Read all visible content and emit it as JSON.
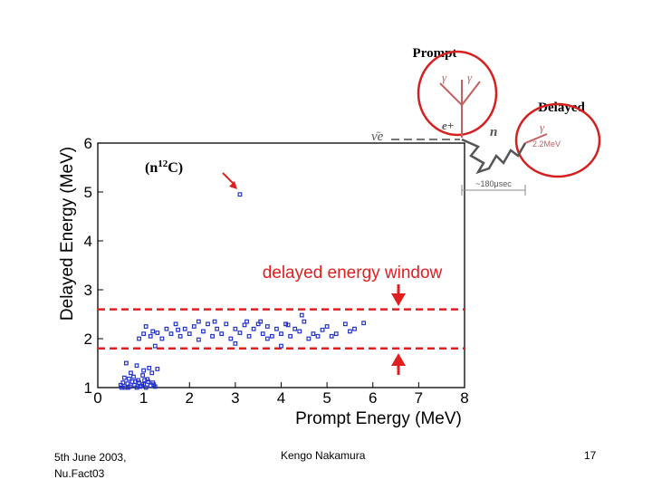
{
  "diagram": {
    "prompt_label": "Prompt",
    "delayed_label": "Delayed",
    "nu_label": "ν̄e",
    "positron_label": "e+",
    "neutron_label": "n",
    "gamma_label": "γ",
    "gamma_energy": "2.2MeV",
    "time_label": "~180μsec",
    "circle_color": "#d62020"
  },
  "annotation": {
    "capture_label": "(n",
    "capture_mass": "12",
    "capture_element": "C)"
  },
  "chart_data": {
    "type": "scatter",
    "title": "",
    "xlabel": "Prompt Energy (MeV)",
    "ylabel": "Delayed Energy (MeV)",
    "xlim": [
      0,
      8
    ],
    "ylim": [
      1,
      6
    ],
    "xticks": [
      0,
      1,
      2,
      3,
      4,
      5,
      6,
      7,
      8
    ],
    "yticks": [
      1,
      2,
      3,
      4,
      5,
      6
    ],
    "window_label": "delayed energy window",
    "window": [
      1.8,
      2.6
    ],
    "window_color": "#e02020",
    "marker_color": "#2233cc",
    "points": [
      [
        3.1,
        4.95
      ],
      [
        0.5,
        1.05
      ],
      [
        0.55,
        1.1
      ],
      [
        0.6,
        1.0
      ],
      [
        0.65,
        1.08
      ],
      [
        0.7,
        1.02
      ],
      [
        0.75,
        1.12
      ],
      [
        0.8,
        1.05
      ],
      [
        0.85,
        1.0
      ],
      [
        0.9,
        1.1
      ],
      [
        0.95,
        1.03
      ],
      [
        1.0,
        1.07
      ],
      [
        1.05,
        1.0
      ],
      [
        1.1,
        1.12
      ],
      [
        1.15,
        1.04
      ],
      [
        1.2,
        1.1
      ],
      [
        1.25,
        1.02
      ],
      [
        0.58,
        1.2
      ],
      [
        0.68,
        1.18
      ],
      [
        0.78,
        1.22
      ],
      [
        0.88,
        1.15
      ],
      [
        0.98,
        1.25
      ],
      [
        1.08,
        1.17
      ],
      [
        1.18,
        1.3
      ],
      [
        0.62,
        1.5
      ],
      [
        0.85,
        1.45
      ],
      [
        1.0,
        1.35
      ],
      [
        1.12,
        1.4
      ],
      [
        0.72,
        1.3
      ],
      [
        0.92,
        1.02
      ],
      [
        1.02,
        1.15
      ],
      [
        0.52,
        1.0
      ],
      [
        1.3,
        1.38
      ],
      [
        0.66,
        1.0
      ],
      [
        0.82,
        1.12
      ],
      [
        1.22,
        1.06
      ],
      [
        0.9,
        2.0
      ],
      [
        1.0,
        2.1
      ],
      [
        1.05,
        2.25
      ],
      [
        1.15,
        2.05
      ],
      [
        1.2,
        2.15
      ],
      [
        1.3,
        2.12
      ],
      [
        1.4,
        2.0
      ],
      [
        1.5,
        2.2
      ],
      [
        1.6,
        2.1
      ],
      [
        1.7,
        2.3
      ],
      [
        1.8,
        2.05
      ],
      [
        1.9,
        2.2
      ],
      [
        2.0,
        2.1
      ],
      [
        2.1,
        2.25
      ],
      [
        2.2,
        1.98
      ],
      [
        2.3,
        2.15
      ],
      [
        2.4,
        2.3
      ],
      [
        2.5,
        2.05
      ],
      [
        2.6,
        2.2
      ],
      [
        2.7,
        2.1
      ],
      [
        2.8,
        2.3
      ],
      [
        2.9,
        2.0
      ],
      [
        3.0,
        2.2
      ],
      [
        3.1,
        2.12
      ],
      [
        3.2,
        2.28
      ],
      [
        3.3,
        2.05
      ],
      [
        3.4,
        2.2
      ],
      [
        3.5,
        2.3
      ],
      [
        3.6,
        2.1
      ],
      [
        3.7,
        2.25
      ],
      [
        3.8,
        2.05
      ],
      [
        3.9,
        2.2
      ],
      [
        4.0,
        2.1
      ],
      [
        4.1,
        2.3
      ],
      [
        4.2,
        2.05
      ],
      [
        4.3,
        2.2
      ],
      [
        4.4,
        2.15
      ],
      [
        4.5,
        2.35
      ],
      [
        4.6,
        2.0
      ],
      [
        4.7,
        2.1
      ],
      [
        4.8,
        2.05
      ],
      [
        5.0,
        2.25
      ],
      [
        5.2,
        2.1
      ],
      [
        5.4,
        2.3
      ],
      [
        5.6,
        2.2
      ],
      [
        5.8,
        2.32
      ],
      [
        4.45,
        2.48
      ],
      [
        3.55,
        2.35
      ],
      [
        2.55,
        2.35
      ],
      [
        1.75,
        2.18
      ],
      [
        3.25,
        2.35
      ],
      [
        4.15,
        2.28
      ],
      [
        5.1,
        2.05
      ],
      [
        5.5,
        2.15
      ],
      [
        1.25,
        1.85
      ],
      [
        3.0,
        1.9
      ],
      [
        4.0,
        1.85
      ],
      [
        2.2,
        2.35
      ],
      [
        3.7,
        2.0
      ],
      [
        4.9,
        2.18
      ]
    ]
  },
  "footer": {
    "date_line1": "5th June 2003,",
    "date_line2": "Nu.Fact03",
    "author": "Kengo Nakamura",
    "page_number": "17"
  }
}
